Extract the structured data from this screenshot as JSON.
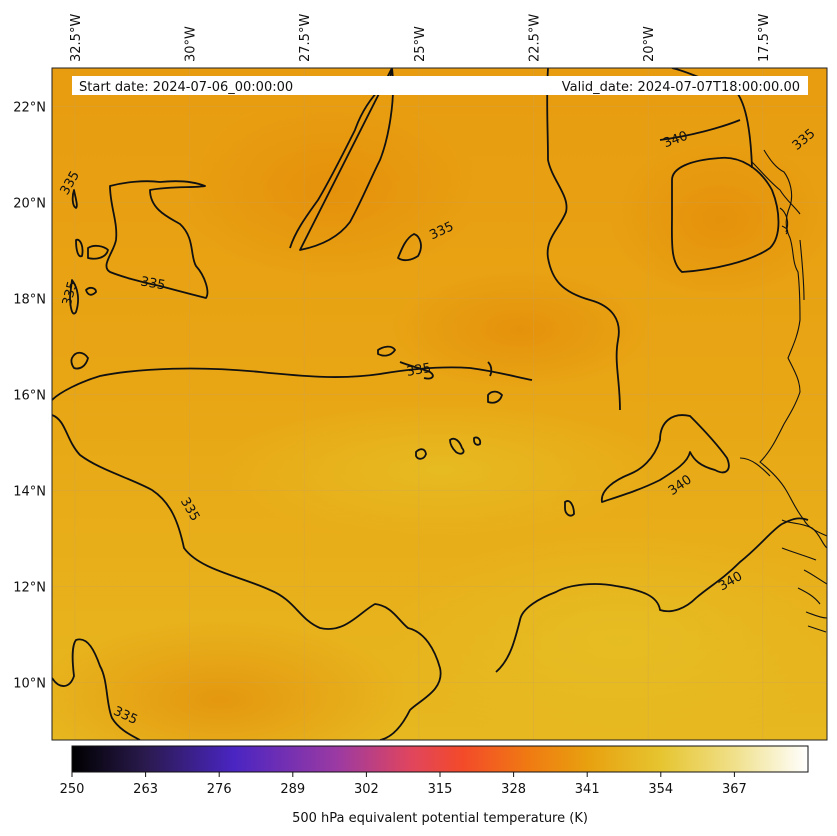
{
  "header": {
    "start_date": "Start date: 2024-07-06_00:00:00",
    "valid_date": "Valid_date: 2024-07-07T18:00:00.00"
  },
  "map": {
    "lon_range": [
      -33,
      -16.1
    ],
    "lat_range": [
      8.8,
      22.8
    ],
    "lon_ticks": [
      {
        "value": -32.5,
        "label": "32.5°W"
      },
      {
        "value": -30,
        "label": "30°W"
      },
      {
        "value": -27.5,
        "label": "27.5°W"
      },
      {
        "value": -25,
        "label": "25°W"
      },
      {
        "value": -22.5,
        "label": "22.5°W"
      },
      {
        "value": -20,
        "label": "20°W"
      },
      {
        "value": -17.5,
        "label": "17.5°W"
      }
    ],
    "lat_ticks": [
      {
        "value": 22,
        "label": "22°N"
      },
      {
        "value": 20,
        "label": "20°N"
      },
      {
        "value": 18,
        "label": "18°N"
      },
      {
        "value": 16,
        "label": "16°N"
      },
      {
        "value": 14,
        "label": "14°N"
      },
      {
        "value": 12,
        "label": "12°N"
      },
      {
        "value": 10,
        "label": "10°N"
      }
    ],
    "contour_labels": [
      {
        "text": "335",
        "lon": -32.6,
        "lat": 20.4,
        "rot": -60
      },
      {
        "text": "335",
        "lon": -32.6,
        "lat": 18.1,
        "rot": -75
      },
      {
        "text": "335",
        "lon": -30.8,
        "lat": 18.3,
        "rot": 10
      },
      {
        "text": "335",
        "lon": -24.5,
        "lat": 19.4,
        "rot": -25
      },
      {
        "text": "335",
        "lon": -25,
        "lat": 16.5,
        "rot": -10
      },
      {
        "text": "335",
        "lon": -30,
        "lat": 13.6,
        "rot": 60
      },
      {
        "text": "335",
        "lon": -31.4,
        "lat": 9.3,
        "rot": 25
      },
      {
        "text": "340",
        "lon": -19.4,
        "lat": 21.3,
        "rot": -20
      },
      {
        "text": "335",
        "lon": -16.6,
        "lat": 21.3,
        "rot": -40
      },
      {
        "text": "340",
        "lon": -19.3,
        "lat": 14.1,
        "rot": -35
      },
      {
        "text": "340",
        "lon": -18.2,
        "lat": 12.1,
        "rot": -30
      }
    ]
  },
  "colorbar": {
    "ticks": [
      "250",
      "263",
      "276",
      "289",
      "302",
      "315",
      "328",
      "341",
      "354",
      "367"
    ],
    "label": "500 hPa equivalent potential temperature (K)",
    "colors": [
      "#000000",
      "#2a1a4e",
      "#4a25c2",
      "#9b3aa3",
      "#e0455e",
      "#f34a2a",
      "#f07a12",
      "#e8a00f",
      "#e6c530",
      "#f0e08a",
      "#ffffff"
    ]
  }
}
